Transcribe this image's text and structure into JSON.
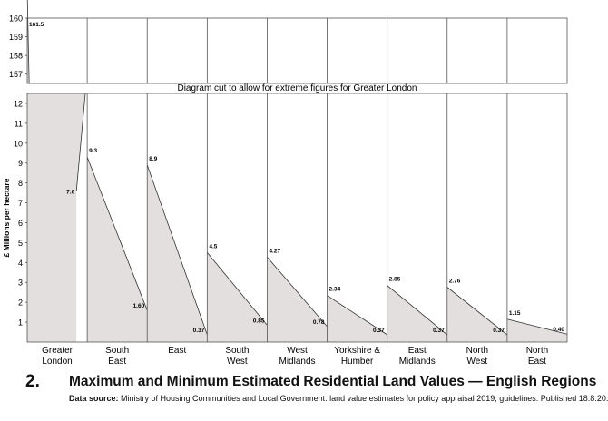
{
  "chart_data": {
    "type": "area",
    "ylabel": "£ Millions per hectare",
    "break_note": "Diagram cut to allow for extreme figures for Greater London",
    "upper_panel": {
      "ylim": [
        156.5,
        160
      ],
      "yticks": [
        "157",
        "158",
        "159",
        "160"
      ]
    },
    "lower_panel": {
      "ylim": [
        0,
        12.5
      ],
      "yticks": [
        "1",
        "2",
        "3",
        "4",
        "5",
        "6",
        "7",
        "8",
        "9",
        "10",
        "11",
        "12"
      ]
    },
    "categories": [
      {
        "name": [
          "Greater",
          "London"
        ],
        "max": 161.5,
        "min": 7.6,
        "max_label": "161.5",
        "min_label": "7.6"
      },
      {
        "name": [
          "South",
          "East"
        ],
        "max": 9.3,
        "min": 1.6,
        "max_label": "9.3",
        "min_label": "1.60"
      },
      {
        "name": [
          "East"
        ],
        "max": 8.9,
        "min": 0.37,
        "max_label": "8.9",
        "min_label": "0.37"
      },
      {
        "name": [
          "South",
          "West"
        ],
        "max": 4.5,
        "min": 0.85,
        "max_label": "4.5",
        "min_label": "0.85"
      },
      {
        "name": [
          "West",
          "Midlands"
        ],
        "max": 4.27,
        "min": 0.78,
        "max_label": "4.27",
        "min_label": "0.78"
      },
      {
        "name": [
          "Yorkshire &",
          "Humber"
        ],
        "max": 2.34,
        "min": 0.37,
        "max_label": "2.34",
        "min_label": "0.37"
      },
      {
        "name": [
          "East",
          "Midlands"
        ],
        "max": 2.85,
        "min": 0.37,
        "max_label": "2.85",
        "min_label": "0.37"
      },
      {
        "name": [
          "North",
          "West"
        ],
        "max": 2.76,
        "min": 0.37,
        "max_label": "2.76",
        "min_label": "0.37"
      },
      {
        "name": [
          "North",
          "East"
        ],
        "max": 1.15,
        "min": 0.4,
        "max_label": "1.15",
        "min_label": "0.40"
      }
    ],
    "colors": {
      "fill": "#e3dfdf",
      "stroke": "#333333",
      "grid": "#555555"
    },
    "grid": false
  },
  "footer": {
    "figure_number": "2.",
    "title": "Maximum and Minimum Estimated Residential Land Values — English Regions",
    "source_label": "Data source:",
    "source_text": " Ministry of Housing Communities and Local Government:  land value estimates for policy appraisal 2019, guidelines. Published 18.8.20."
  }
}
